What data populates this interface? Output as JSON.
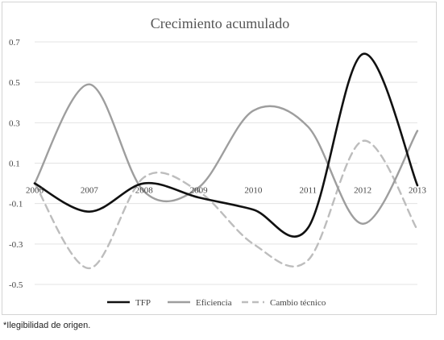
{
  "chart_data": {
    "type": "line",
    "title": "Crecimiento acumulado",
    "xlabel": "",
    "ylabel": "",
    "x": [
      "2006",
      "2007",
      "2008",
      "2009",
      "2010",
      "2011",
      "2012",
      "2013"
    ],
    "ylim": [
      -0.5,
      0.7
    ],
    "yticks": [
      "0.7",
      "0.5",
      "0.3",
      "0.1",
      "-0.1",
      "-0.3",
      "-0.5"
    ],
    "ytick_values": [
      0.7,
      0.5,
      0.3,
      0.1,
      -0.1,
      -0.3,
      -0.5
    ],
    "grid": true,
    "legend_position": "bottom",
    "series": [
      {
        "name": "TFP",
        "values": [
          0.0,
          -0.14,
          0.0,
          -0.07,
          -0.13,
          -0.22,
          0.64,
          -0.01
        ],
        "color": "#111111",
        "style": "solid"
      },
      {
        "name": "Eficiencia",
        "values": [
          0.0,
          0.49,
          -0.04,
          -0.02,
          0.36,
          0.28,
          -0.2,
          0.26
        ],
        "color": "#9e9e9e",
        "style": "solid"
      },
      {
        "name": "Cambio técnico",
        "values": [
          0.0,
          -0.42,
          0.03,
          -0.04,
          -0.3,
          -0.38,
          0.21,
          -0.23
        ],
        "color": "#bdbdbd",
        "style": "dashed"
      }
    ]
  },
  "footnote": "*Ilegibilidad de origen."
}
